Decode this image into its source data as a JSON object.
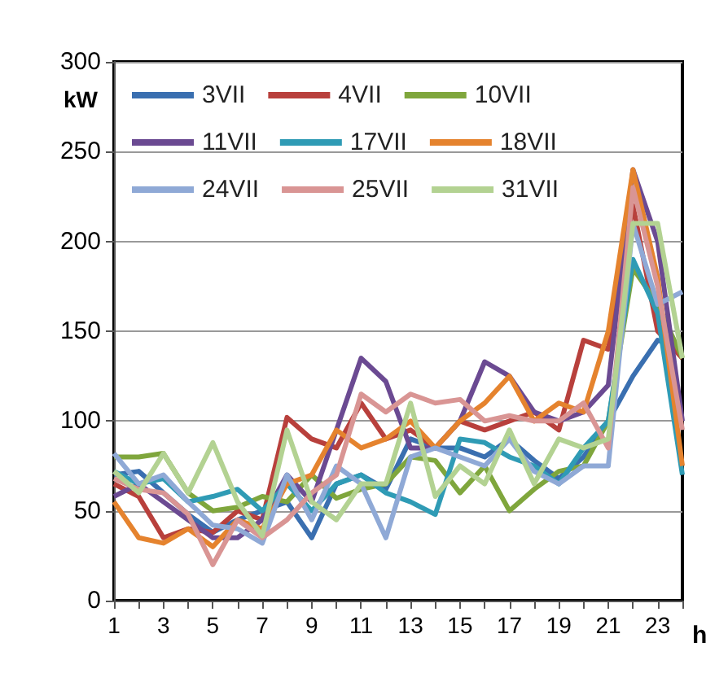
{
  "chart_data": {
    "type": "line",
    "xlabel": "h",
    "ylabel": "kW",
    "x": [
      1,
      2,
      3,
      4,
      5,
      6,
      7,
      8,
      9,
      10,
      11,
      12,
      13,
      14,
      15,
      16,
      17,
      18,
      19,
      20,
      21,
      22,
      23,
      24
    ],
    "xlim": [
      1,
      24
    ],
    "xticks": [
      1,
      {
        "value": 2,
        "label": null
      },
      3,
      {
        "value": 4,
        "label": null
      },
      5,
      {
        "value": 6,
        "label": null
      },
      7,
      {
        "value": 8,
        "label": null
      },
      9,
      {
        "value": 10,
        "label": null
      },
      11,
      {
        "value": 12,
        "label": null
      },
      13,
      {
        "value": 14,
        "label": null
      },
      15,
      {
        "value": 16,
        "label": null
      },
      17,
      {
        "value": 18,
        "label": null
      },
      19,
      {
        "value": 20,
        "label": null
      },
      21,
      {
        "value": 22,
        "label": null
      },
      23,
      {
        "value": 24,
        "label": null
      }
    ],
    "ylim": [
      0,
      300
    ],
    "yticks": [
      0,
      50,
      100,
      150,
      200,
      250,
      300
    ],
    "grid": "y",
    "legend": "top",
    "marker": "none",
    "line_style": "solid",
    "series": [
      {
        "name": "3VII",
        "color": "#3a6fb0",
        "values": [
          70,
          72,
          60,
          48,
          38,
          45,
          50,
          55,
          35,
          65,
          70,
          62,
          90,
          85,
          85,
          80,
          90,
          78,
          68,
          80,
          100,
          125,
          145,
          140
        ]
      },
      {
        "name": "4VII",
        "color": "#b8403c",
        "values": [
          65,
          58,
          35,
          40,
          38,
          50,
          45,
          102,
          90,
          85,
          110,
          90,
          95,
          85,
          100,
          95,
          100,
          105,
          95,
          145,
          140,
          220,
          150,
          135
        ]
      },
      {
        "name": "10VII",
        "color": "#7fa63c",
        "values": [
          80,
          80,
          82,
          60,
          50,
          52,
          58,
          55,
          70,
          57,
          62,
          65,
          80,
          78,
          60,
          75,
          50,
          62,
          72,
          75,
          100,
          185,
          165,
          135
        ]
      },
      {
        "name": "11VII",
        "color": "#6b4a92",
        "values": [
          58,
          65,
          55,
          45,
          35,
          35,
          45,
          70,
          55,
          95,
          135,
          122,
          85,
          85,
          100,
          133,
          125,
          105,
          100,
          105,
          120,
          240,
          200,
          100
        ]
      },
      {
        "name": "17VII",
        "color": "#2f9bb5",
        "values": [
          72,
          65,
          68,
          55,
          58,
          62,
          50,
          65,
          50,
          65,
          70,
          60,
          55,
          48,
          90,
          88,
          80,
          75,
          65,
          85,
          100,
          190,
          160,
          70
        ]
      },
      {
        "name": "18VII",
        "color": "#e5832e",
        "values": [
          55,
          35,
          32,
          40,
          30,
          45,
          40,
          65,
          70,
          95,
          85,
          90,
          100,
          85,
          100,
          110,
          125,
          100,
          110,
          105,
          150,
          240,
          180,
          75
        ]
      },
      {
        "name": "24VII",
        "color": "#8fa9d6",
        "values": [
          82,
          65,
          70,
          55,
          42,
          40,
          32,
          70,
          45,
          75,
          65,
          35,
          80,
          85,
          80,
          75,
          90,
          72,
          65,
          75,
          75,
          210,
          165,
          172
        ]
      },
      {
        "name": "25VII",
        "color": "#d99594",
        "values": [
          68,
          62,
          60,
          48,
          20,
          45,
          35,
          45,
          60,
          70,
          115,
          105,
          115,
          110,
          112,
          100,
          103,
          100,
          100,
          110,
          85,
          230,
          175,
          95
        ]
      },
      {
        "name": "31VII",
        "color": "#b3d292",
        "values": [
          72,
          60,
          82,
          60,
          88,
          55,
          36,
          95,
          55,
          45,
          65,
          65,
          110,
          58,
          75,
          65,
          95,
          65,
          90,
          85,
          90,
          210,
          210,
          135
        ]
      }
    ]
  }
}
